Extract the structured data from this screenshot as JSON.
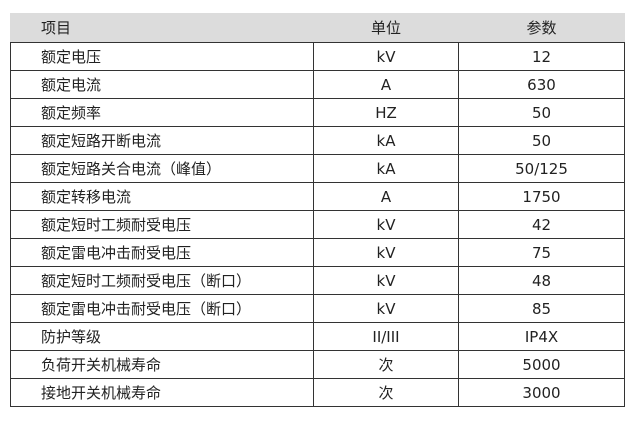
{
  "headers": {
    "item": "项目",
    "unit": "单位",
    "value": "参数"
  },
  "rows": [
    {
      "item": "额定电压",
      "unit": "kV",
      "value": "12"
    },
    {
      "item": "额定电流",
      "unit": "A",
      "value": "630"
    },
    {
      "item": "额定频率",
      "unit": "HZ",
      "value": "50"
    },
    {
      "item": "额定短路开断电流",
      "unit": "kA",
      "value": "50"
    },
    {
      "item": "额定短路关合电流（峰值）",
      "unit": "kA",
      "value": "50/125"
    },
    {
      "item": "额定转移电流",
      "unit": "A",
      "value": "1750"
    },
    {
      "item": "额定短时工频耐受电压",
      "unit": "kV",
      "value": "42"
    },
    {
      "item": "额定雷电冲击耐受电压",
      "unit": "kV",
      "value": "75"
    },
    {
      "item": "额定短时工频耐受电压（断口）",
      "unit": "kV",
      "value": "48"
    },
    {
      "item": "额定雷电冲击耐受电压（断口）",
      "unit": "kV",
      "value": "85"
    },
    {
      "item": "防护等级",
      "unit": "II/III",
      "value": "IP4X"
    },
    {
      "item": "负荷开关机械寿命",
      "unit": "次",
      "value": "5000"
    },
    {
      "item": "接地开关机械寿命",
      "unit": "次",
      "value": "3000"
    }
  ]
}
